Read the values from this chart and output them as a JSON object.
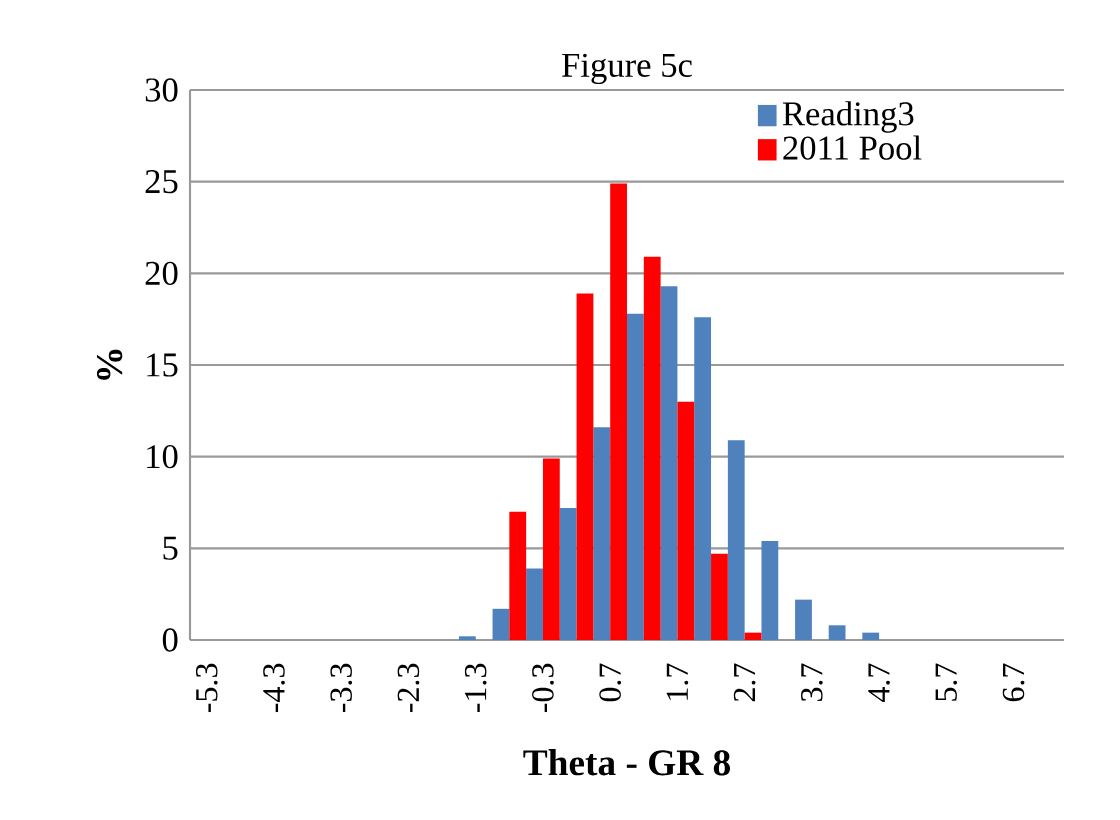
{
  "chart_data": {
    "type": "bar",
    "title": "Figure 5c",
    "xlabel": "Theta - GR 8",
    "ylabel": "%",
    "categories": [
      "-5.3",
      null,
      "-4.3",
      null,
      "-3.3",
      null,
      "-2.3",
      null,
      "-1.3",
      null,
      "-0.3",
      null,
      "0.7",
      null,
      "1.7",
      null,
      "2.7",
      null,
      "3.7",
      null,
      "4.7",
      null,
      "5.7",
      null,
      "6.7",
      null
    ],
    "series": [
      {
        "name": "Reading3",
        "color": "#4f81bd",
        "values": [
          0,
          0,
          0,
          0,
          0,
          0,
          0,
          0,
          0.2,
          1.7,
          3.9,
          7.2,
          11.6,
          17.8,
          19.3,
          17.6,
          10.9,
          5.4,
          2.2,
          0.8,
          0.4,
          0,
          0,
          0,
          0,
          0
        ]
      },
      {
        "name": "2011 Pool",
        "color": "#ff0000",
        "values": [
          0,
          0,
          0,
          0,
          0,
          0,
          0,
          0,
          0,
          7.0,
          9.9,
          18.9,
          24.9,
          20.9,
          13.0,
          4.7,
          0.4,
          0,
          0,
          0,
          0,
          0,
          0,
          0,
          0,
          0
        ]
      }
    ],
    "ylim": [
      0,
      30
    ],
    "yticks": [
      0,
      5,
      10,
      15,
      20,
      25,
      30
    ],
    "grid": "y",
    "legend": "top right"
  }
}
